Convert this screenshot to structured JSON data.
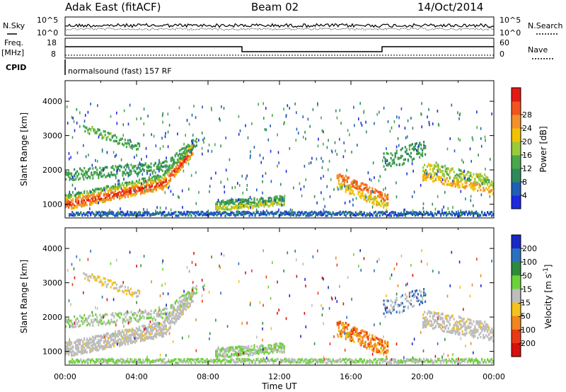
{
  "header": {
    "station": "Adak East (fitACF)",
    "beam": "Beam 02",
    "date": "14/Oct/2014"
  },
  "noise_panel": {
    "left_label": "N.Sky",
    "right_label": "N.Search",
    "left_ticks": [
      "10^5",
      "10^0"
    ],
    "right_ticks": [
      "10^5",
      "10^0"
    ]
  },
  "freq_panel": {
    "left_label": "Freq.",
    "left_unit": "[MHz]",
    "left_ticks": [
      "18",
      "8"
    ],
    "right_label": "Nave",
    "right_ticks": [
      "60",
      "0"
    ],
    "cpid_label": "CPID",
    "cpid_text": "normalsound (fast) 157 RF"
  },
  "chart_data": [
    {
      "type": "heatmap",
      "title": "",
      "xlabel": "",
      "ylabel": "Slant Range [km]",
      "yticks": [
        "1000",
        "2000",
        "3000",
        "4000"
      ],
      "ylim": [
        600,
        4600
      ],
      "colorbar": {
        "label": "Power [dB]",
        "ticks": [
          "4",
          "8",
          "12",
          "16",
          "20",
          "24",
          "28"
        ],
        "colors": [
          "#1e28e0",
          "#1f5fb8",
          "#2f8a5a",
          "#4aa84a",
          "#9acb3a",
          "#f2c200",
          "#f4902a",
          "#f2541e",
          "#e51a12"
        ]
      }
    },
    {
      "type": "heatmap",
      "title": "",
      "xlabel": "Time UT",
      "ylabel": "Slant Range [km]",
      "yticks": [
        "1000",
        "2000",
        "3000",
        "4000"
      ],
      "ylim": [
        600,
        4600
      ],
      "xticks": [
        "00:00",
        "04:00",
        "08:00",
        "12:00",
        "16:00",
        "20:00",
        "00:00"
      ],
      "colorbar": {
        "label": "Velocity [m s^-1]",
        "ticks": [
          "200",
          "100",
          "50",
          "15",
          "-15",
          "-50",
          "-100",
          "-200"
        ],
        "colors": [
          "#1a28c8",
          "#2a70c0",
          "#2e8a3c",
          "#6cd23a",
          "#bdbdbd",
          "#f4c21c",
          "#f2861e",
          "#ea3a14",
          "#d8100e"
        ]
      }
    }
  ]
}
